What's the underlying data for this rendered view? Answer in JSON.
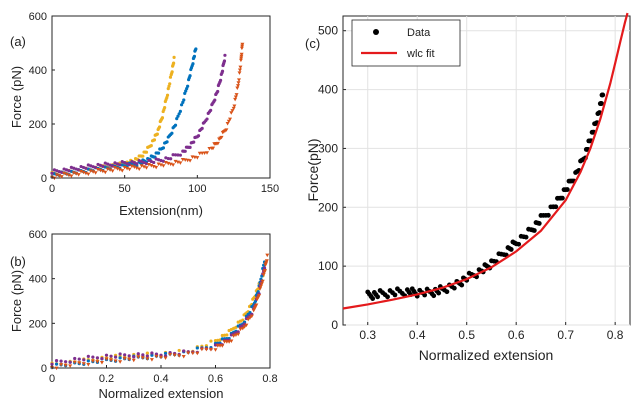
{
  "chart_data": [
    {
      "panel_label": "(a)",
      "type": "scatter",
      "xlabel": "Extension(nm)",
      "ylabel": "Force (pN)",
      "xlim": [
        0,
        150
      ],
      "ylim": [
        0,
        600
      ],
      "xticks": [
        "0",
        "50",
        "100",
        "150"
      ],
      "yticks": [
        "0",
        "200",
        "400",
        "600"
      ],
      "grid": false,
      "series": [
        {
          "color": "#EDB120",
          "marker": "dot",
          "x": [
            0,
            10,
            20,
            30,
            40,
            50,
            55,
            60,
            65,
            70,
            73,
            76,
            79,
            82,
            84
          ],
          "y": [
            14,
            20,
            27,
            35,
            43,
            52,
            60,
            75,
            100,
            140,
            175,
            230,
            300,
            380,
            440
          ]
        },
        {
          "color": "#0072BD",
          "marker": "dot",
          "x": [
            0,
            10,
            20,
            30,
            40,
            50,
            60,
            65,
            70,
            75,
            80,
            85,
            90,
            94,
            97,
            99
          ],
          "y": [
            10,
            18,
            25,
            32,
            38,
            45,
            55,
            65,
            80,
            105,
            145,
            200,
            280,
            360,
            430,
            480
          ]
        },
        {
          "color": "#7E2F8E",
          "marker": "dot",
          "x": [
            0,
            10,
            20,
            30,
            40,
            50,
            60,
            70,
            80,
            90,
            95,
            100,
            105,
            110,
            114,
            117,
            119
          ],
          "y": [
            22,
            30,
            38,
            45,
            50,
            55,
            58,
            62,
            72,
            95,
            120,
            155,
            205,
            265,
            325,
            390,
            450
          ]
        },
        {
          "color": "#D95319",
          "marker": "triangle",
          "x": [
            0,
            10,
            20,
            30,
            40,
            50,
            60,
            70,
            80,
            90,
            100,
            110,
            115,
            120,
            125,
            128,
            130,
            131
          ],
          "y": [
            5,
            12,
            18,
            24,
            30,
            35,
            40,
            45,
            52,
            62,
            80,
            110,
            140,
            185,
            260,
            340,
            430,
            500
          ]
        }
      ]
    },
    {
      "panel_label": "(b)",
      "type": "scatter",
      "xlabel": "Normalized extension",
      "ylabel": "Force (pN)",
      "xlim": [
        0,
        0.8
      ],
      "ylim": [
        0,
        600
      ],
      "xticks": [
        "0",
        "0.2",
        "0.4",
        "0.6",
        "0.8"
      ],
      "yticks": [
        "0",
        "200",
        "400",
        "600"
      ],
      "grid": false,
      "series": [
        {
          "color": "#EDB120",
          "marker": "dot",
          "x": [
            0,
            0.1,
            0.2,
            0.3,
            0.4,
            0.5,
            0.6,
            0.65,
            0.7,
            0.73,
            0.75,
            0.77,
            0.78
          ],
          "y": [
            14,
            30,
            45,
            55,
            62,
            75,
            120,
            160,
            220,
            280,
            340,
            400,
            440
          ]
        },
        {
          "color": "#0072BD",
          "marker": "dot",
          "x": [
            0,
            0.1,
            0.2,
            0.3,
            0.4,
            0.5,
            0.6,
            0.65,
            0.7,
            0.74,
            0.76,
            0.78
          ],
          "y": [
            10,
            22,
            35,
            45,
            55,
            70,
            105,
            140,
            200,
            280,
            360,
            480
          ]
        },
        {
          "color": "#7E2F8E",
          "marker": "dot",
          "x": [
            0,
            0.1,
            0.2,
            0.3,
            0.4,
            0.5,
            0.6,
            0.65,
            0.7,
            0.74,
            0.76,
            0.78
          ],
          "y": [
            22,
            40,
            52,
            58,
            60,
            70,
            95,
            130,
            190,
            260,
            340,
            450
          ]
        },
        {
          "color": "#D95319",
          "marker": "triangle",
          "x": [
            0,
            0.1,
            0.2,
            0.3,
            0.4,
            0.5,
            0.6,
            0.65,
            0.7,
            0.74,
            0.76,
            0.78,
            0.79
          ],
          "y": [
            5,
            20,
            32,
            40,
            48,
            62,
            90,
            120,
            175,
            250,
            330,
            430,
            500
          ]
        }
      ]
    },
    {
      "panel_label": "(c)",
      "type": "scatter",
      "xlabel": "Normalized extension",
      "ylabel": "Force(pN)",
      "xlim": [
        0.25,
        0.83
      ],
      "ylim": [
        0,
        525
      ],
      "xticks": [
        "0.3",
        "0.4",
        "0.5",
        "0.6",
        "0.7",
        "0.8"
      ],
      "yticks": [
        "0",
        "100",
        "200",
        "300",
        "400",
        "500"
      ],
      "grid": true,
      "legend_position": "top-left",
      "series": [
        {
          "name": "Data",
          "color": "#000000",
          "marker": "dot",
          "x": [
            0.3,
            0.32,
            0.35,
            0.38,
            0.4,
            0.43,
            0.45,
            0.48,
            0.5,
            0.53,
            0.55,
            0.58,
            0.6,
            0.63,
            0.65,
            0.68,
            0.7,
            0.72,
            0.74,
            0.75,
            0.76,
            0.77,
            0.775
          ],
          "y": [
            50,
            52,
            55,
            56,
            55,
            55,
            60,
            68,
            80,
            92,
            105,
            125,
            140,
            160,
            180,
            205,
            230,
            255,
            290,
            315,
            340,
            370,
            395
          ]
        },
        {
          "name": "wlc fit",
          "color": "#E41A1C",
          "type": "line",
          "x": [
            0.25,
            0.3,
            0.35,
            0.4,
            0.45,
            0.5,
            0.55,
            0.6,
            0.65,
            0.7,
            0.73,
            0.75,
            0.77,
            0.79,
            0.8,
            0.81,
            0.82,
            0.825
          ],
          "y": [
            28,
            35,
            43,
            52,
            63,
            78,
            98,
            125,
            160,
            212,
            260,
            300,
            350,
            410,
            445,
            480,
            515,
            530
          ]
        }
      ]
    }
  ]
}
